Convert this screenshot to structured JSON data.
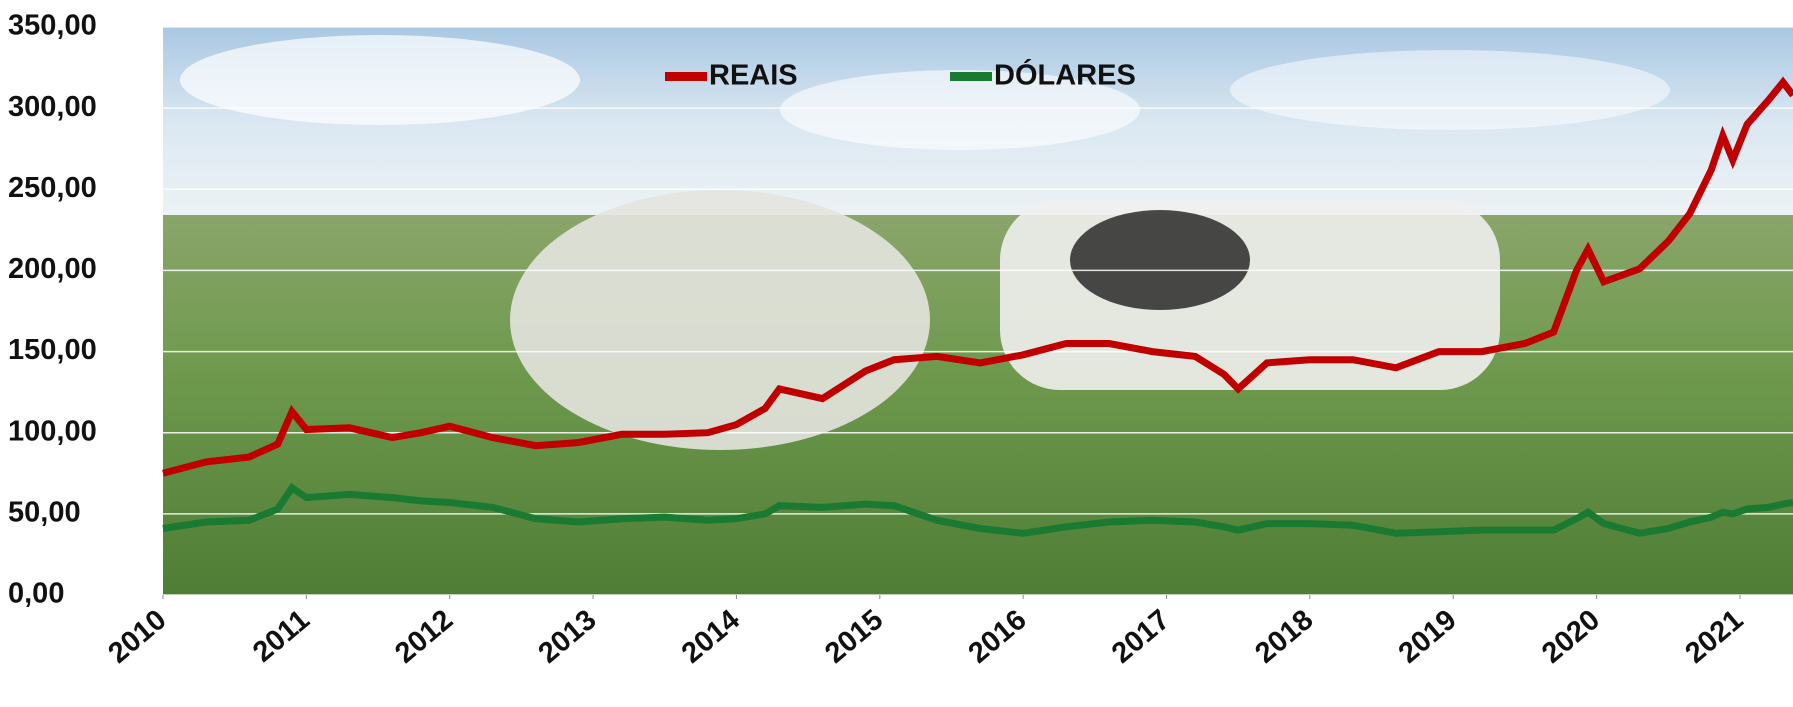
{
  "chart_data": {
    "type": "line",
    "x": [
      2010,
      2010.3,
      2010.6,
      2010.8,
      2010.9,
      2011.0,
      2011.3,
      2011.6,
      2011.8,
      2012.0,
      2012.3,
      2012.6,
      2012.9,
      2013.2,
      2013.5,
      2013.8,
      2014.0,
      2014.2,
      2014.3,
      2014.6,
      2014.9,
      2015.1,
      2015.4,
      2015.7,
      2016.0,
      2016.3,
      2016.6,
      2016.9,
      2017.2,
      2017.4,
      2017.5,
      2017.7,
      2018.0,
      2018.3,
      2018.6,
      2018.9,
      2019.2,
      2019.5,
      2019.7,
      2019.86,
      2019.94,
      2020.05,
      2020.3,
      2020.5,
      2020.65,
      2020.8,
      2020.88,
      2020.95,
      2021.05,
      2021.2,
      2021.3,
      2021.37
    ],
    "series": [
      {
        "name": "REAIS",
        "color": "#c00000",
        "values": [
          75,
          82,
          85,
          93,
          113,
          102,
          103,
          97,
          100,
          104,
          97,
          92,
          94,
          99,
          99,
          100,
          105,
          115,
          127,
          121,
          138,
          145,
          147,
          143,
          148,
          155,
          155,
          150,
          147,
          136,
          127,
          143,
          145,
          145,
          140,
          150,
          150,
          155,
          162,
          200,
          213,
          193,
          201,
          218,
          235,
          262,
          283,
          268,
          290,
          305,
          316,
          308
        ]
      },
      {
        "name": "DÓLARES",
        "color": "#1a7a32",
        "values": [
          41,
          45,
          46,
          53,
          66,
          60,
          62,
          60,
          58,
          57,
          54,
          47,
          45,
          47,
          48,
          46,
          47,
          50,
          55,
          54,
          56,
          55,
          46,
          41,
          38,
          42,
          45,
          46,
          45,
          42,
          40,
          44,
          44,
          43,
          38,
          39,
          40,
          40,
          40,
          47,
          51,
          44,
          38,
          41,
          45,
          48,
          51,
          50,
          53,
          54,
          56,
          57
        ]
      }
    ],
    "xlim": [
      2010,
      2021.37
    ],
    "xticks": [
      2010,
      2011,
      2012,
      2013,
      2014,
      2015,
      2016,
      2017,
      2018,
      2019,
      2020,
      2021
    ],
    "ylim": [
      0,
      350
    ],
    "yticks": [
      {
        "value": 0,
        "label": "0,00"
      },
      {
        "value": 50,
        "label": "50,00"
      },
      {
        "value": 100,
        "label": "100,00"
      },
      {
        "value": 150,
        "label": "150,00"
      },
      {
        "value": 200,
        "label": "200,00"
      },
      {
        "value": 250,
        "label": "250,00"
      },
      {
        "value": 300,
        "label": "300,00"
      },
      {
        "value": 350,
        "label": "350,00"
      }
    ],
    "grid": true,
    "legend": "top"
  }
}
